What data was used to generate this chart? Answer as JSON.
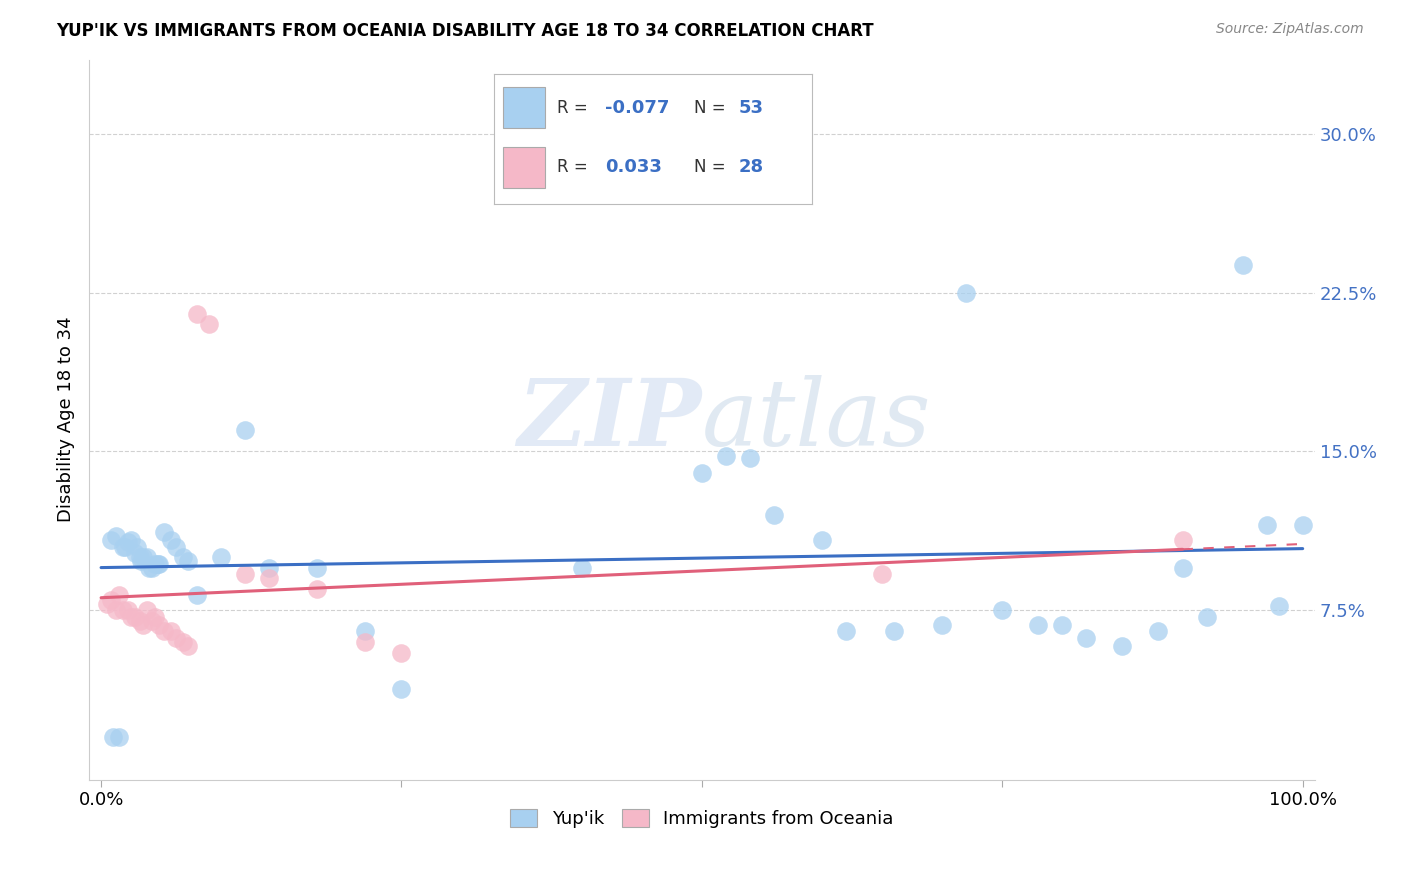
{
  "title": "YUP'IK VS IMMIGRANTS FROM OCEANIA DISABILITY AGE 18 TO 34 CORRELATION CHART",
  "source": "Source: ZipAtlas.com",
  "ylabel": "Disability Age 18 to 34",
  "ytick_labels": [
    "7.5%",
    "15.0%",
    "22.5%",
    "30.0%"
  ],
  "ytick_values": [
    0.075,
    0.15,
    0.225,
    0.3
  ],
  "xlim": [
    -0.01,
    1.01
  ],
  "ylim": [
    -0.005,
    0.335
  ],
  "legend_labels": [
    "Yup'ik",
    "Immigrants from Oceania"
  ],
  "r_yupik": -0.077,
  "n_yupik": 53,
  "r_oceania": 0.033,
  "n_oceania": 28,
  "blue_color": "#A8D0F0",
  "pink_color": "#F5B8C8",
  "blue_line_color": "#3B6FC4",
  "pink_line_color": "#E0607A",
  "watermark_zip": "ZIP",
  "watermark_atlas": "atlas",
  "blue_scatter_x": [
    0.008,
    0.012,
    0.018,
    0.022,
    0.028,
    0.033,
    0.038,
    0.042,
    0.047,
    0.052,
    0.058,
    0.062,
    0.068,
    0.072,
    0.025,
    0.03,
    0.035,
    0.04,
    0.045,
    0.02,
    0.015,
    0.01,
    0.032,
    0.048,
    0.12,
    0.14,
    0.18,
    0.22,
    0.5,
    0.52,
    0.54,
    0.56,
    0.6,
    0.62,
    0.66,
    0.7,
    0.72,
    0.75,
    0.78,
    0.8,
    0.82,
    0.85,
    0.88,
    0.9,
    0.92,
    0.95,
    0.97,
    0.98,
    1.0,
    0.08,
    0.1,
    0.25,
    0.4
  ],
  "blue_scatter_y": [
    0.108,
    0.11,
    0.105,
    0.107,
    0.102,
    0.098,
    0.1,
    0.095,
    0.097,
    0.112,
    0.108,
    0.105,
    0.1,
    0.098,
    0.108,
    0.105,
    0.1,
    0.095,
    0.097,
    0.105,
    0.015,
    0.015,
    0.1,
    0.097,
    0.16,
    0.095,
    0.095,
    0.065,
    0.14,
    0.148,
    0.147,
    0.12,
    0.108,
    0.065,
    0.065,
    0.068,
    0.225,
    0.075,
    0.068,
    0.068,
    0.062,
    0.058,
    0.065,
    0.095,
    0.072,
    0.238,
    0.115,
    0.077,
    0.115,
    0.082,
    0.1,
    0.038,
    0.095
  ],
  "pink_scatter_x": [
    0.005,
    0.008,
    0.012,
    0.015,
    0.018,
    0.022,
    0.025,
    0.028,
    0.032,
    0.035,
    0.038,
    0.042,
    0.045,
    0.048,
    0.052,
    0.058,
    0.062,
    0.068,
    0.072,
    0.08,
    0.09,
    0.12,
    0.14,
    0.18,
    0.22,
    0.25,
    0.65,
    0.9
  ],
  "pink_scatter_y": [
    0.078,
    0.08,
    0.075,
    0.082,
    0.075,
    0.075,
    0.072,
    0.072,
    0.07,
    0.068,
    0.075,
    0.07,
    0.072,
    0.068,
    0.065,
    0.065,
    0.062,
    0.06,
    0.058,
    0.215,
    0.21,
    0.092,
    0.09,
    0.085,
    0.06,
    0.055,
    0.092,
    0.108
  ]
}
